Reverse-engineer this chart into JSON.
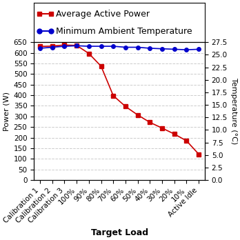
{
  "categories": [
    "Calibration 1",
    "Calibration 2",
    "Calibration 3",
    "100%",
    "90%",
    "80%",
    "70%",
    "60%",
    "50%",
    "40%",
    "30%",
    "20%",
    "10%",
    "Active Idle"
  ],
  "power_values": [
    630,
    632,
    637,
    635,
    597,
    537,
    398,
    347,
    307,
    272,
    245,
    217,
    185,
    122
  ],
  "temp_values": [
    26.3,
    26.5,
    26.7,
    26.8,
    26.7,
    26.7,
    26.7,
    26.5,
    26.5,
    26.3,
    26.2,
    26.1,
    26.0,
    26.1
  ],
  "power_color": "#cc0000",
  "temp_color": "#0000cc",
  "power_label": "Average Active Power",
  "temp_label": "Minimum Ambient Temperature",
  "xlabel": "Target Load",
  "ylabel_left": "Power (W)",
  "ylabel_right": "Temperature (°C)",
  "ylim_left": [
    0,
    650
  ],
  "ylim_right": [
    0.0,
    27.5
  ],
  "yticks_left": [
    0,
    50,
    100,
    150,
    200,
    250,
    300,
    350,
    400,
    450,
    500,
    550,
    600,
    650
  ],
  "yticks_right": [
    0.0,
    2.5,
    5.0,
    7.5,
    10.0,
    12.5,
    15.0,
    17.5,
    20.0,
    22.5,
    25.0,
    27.5
  ],
  "background_color": "#ffffff",
  "grid_color": "#cccccc",
  "legend_fontsize": 9,
  "axis_fontsize": 8,
  "tick_fontsize": 7.5
}
